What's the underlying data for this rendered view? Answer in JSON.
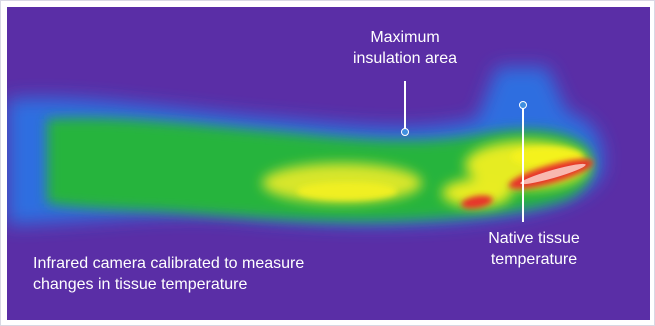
{
  "image": {
    "subject": "thermal-image-of-arm",
    "colors": {
      "background": "#5a2ea6",
      "cool_blue": "#2f6ee0",
      "green": "#26b43c",
      "yellow": "#f0f020",
      "hot_red": "#e8302a"
    }
  },
  "annotations": {
    "max_insulation": {
      "line1": "Maximum",
      "line2": "insulation area"
    },
    "native_tissue": {
      "line1": "Native tissue",
      "line2": "temperature"
    },
    "infrared_caption": {
      "line1": "Infrared camera calibrated to measure",
      "line2": "changes in tissue temperature"
    }
  }
}
